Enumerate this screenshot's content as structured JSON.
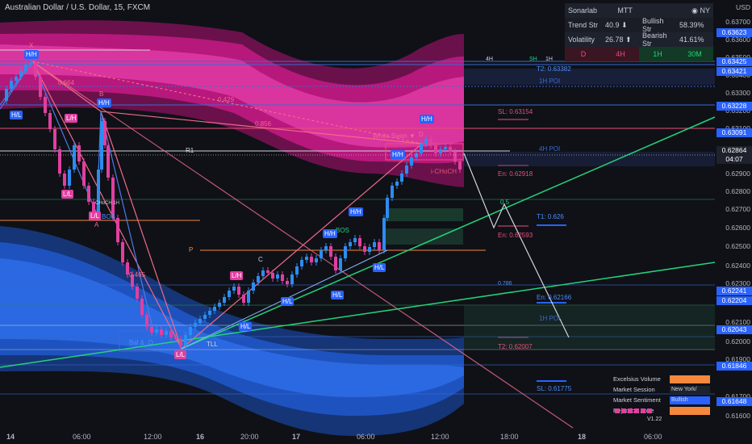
{
  "title": "Australian Dollar / U.S. Dollar, 15, FXCM",
  "currency": "USD",
  "panel": {
    "brand": "Sonarlab",
    "mode": "MTT",
    "session": "NY",
    "trend_label": "Trend Str",
    "trend_value": "40.9 ⬇",
    "bullish_label": "Bullish Str",
    "bullish_value": "58.39%",
    "volatility_label": "Volatility",
    "volatility_value": "26.78 ⬆",
    "bearish_label": "Bearish Str",
    "bearish_value": "41.61%",
    "timeframes": [
      "D",
      "4H",
      "1H",
      "30M"
    ]
  },
  "price_axis": [
    "0.63700",
    "0.63600",
    "0.63500",
    "0.63400",
    "0.63300",
    "0.63200",
    "0.63100",
    "0.62900",
    "0.62800",
    "0.62700",
    "0.62600",
    "0.62500",
    "0.62400",
    "0.62300",
    "0.62100",
    "0.62000",
    "0.61900",
    "0.61700",
    "0.61600"
  ],
  "price_boxes": [
    {
      "text": "0.63623",
      "color": "#2962ff"
    },
    {
      "text": "0.63425",
      "color": "#2962ff"
    },
    {
      "text": "0.63421",
      "color": "#2962ff"
    },
    {
      "text": "0.63228",
      "color": "#2962ff"
    },
    {
      "text": "0.63091",
      "color": "#2962ff"
    },
    {
      "text": "0.62864",
      "color": "#1e222d"
    },
    {
      "text": "04:07",
      "color": "#1e222d"
    },
    {
      "text": "0.62241",
      "color": "#2962ff"
    },
    {
      "text": "0.62204",
      "color": "#2962ff"
    },
    {
      "text": "0.62043",
      "color": "#2962ff"
    },
    {
      "text": "0.61846",
      "color": "#2962ff"
    },
    {
      "text": "0.61648",
      "color": "#2962ff"
    }
  ],
  "time_axis": [
    "14",
    "06:00",
    "12:00",
    "16",
    "20:00",
    "17",
    "06:00",
    "12:00",
    "18:00",
    "18",
    "06:00"
  ],
  "labels": {
    "x": "X",
    "b": "B",
    "a": "A",
    "d": "D",
    "c": "C",
    "r1": "R1",
    "p": "P",
    "fib_664": "0.664",
    "fib_429": "0.429",
    "fib_856": "0.856",
    "fib_465": "0.465",
    "white_swan": "White Swan ▼",
    "sl": "SL: 0.63154",
    "en1": "En: 0.62918",
    "t1": "T1: 0.626",
    "en2": "En: 0.62593",
    "en3": "En: 0.62166",
    "t2_low": "T2: 0.62007",
    "t2_high": "T2: 0.63382",
    "sl_low": "SL: 0.61775",
    "poi_1h": "1H POI",
    "poi_4h": "4H POI",
    "poi_1h_low": "1H POI",
    "h4": "4H",
    "h1": "1H",
    "sh": "SH",
    "bos1": "BOS",
    "bos2": "BOS",
    "ichoch": "i-CHoCH",
    "tll": "TLL",
    "bal": "Bal & .O",
    "fib_05": "0.5",
    "fib_786": "0.786",
    "choch_1h": "CHoCH 1H",
    "version": "V1.22"
  },
  "tags": [
    {
      "text": "H/H",
      "kind": "blue"
    },
    {
      "text": "H/L",
      "kind": "blue"
    },
    {
      "text": "H/H",
      "kind": "blue"
    },
    {
      "text": "L/H",
      "kind": "pink"
    },
    {
      "text": "L/L",
      "kind": "pink"
    },
    {
      "text": "L/L",
      "kind": "pink"
    },
    {
      "text": "L/H",
      "kind": "pink"
    },
    {
      "text": "L/L",
      "kind": "pink"
    },
    {
      "text": "H/L",
      "kind": "blue"
    },
    {
      "text": "H/L",
      "kind": "blue"
    },
    {
      "text": "H/H",
      "kind": "blue"
    },
    {
      "text": "H/H",
      "kind": "blue"
    },
    {
      "text": "H/L",
      "kind": "blue"
    },
    {
      "text": "H/L",
      "kind": "blue"
    },
    {
      "text": "H/H",
      "kind": "blue"
    },
    {
      "text": "H/H",
      "kind": "blue"
    }
  ],
  "legend": [
    {
      "label": "Excelsius Volume",
      "value": "",
      "color": "#f5883c"
    },
    {
      "label": "Market Session",
      "value": "New York/",
      "color": "#1e222d"
    },
    {
      "label": "Market Sentiment",
      "value": "Bullish",
      "color": "#2962ff"
    },
    {
      "label": "Rejection Zone",
      "value": "",
      "color": "#f5883c"
    }
  ],
  "colors": {
    "bull": "#2d8cf0",
    "bear": "#e13fa0",
    "pink_band": "#c2187a",
    "blue_band": "#1f4fb0",
    "green_line": "#25d27a"
  }
}
